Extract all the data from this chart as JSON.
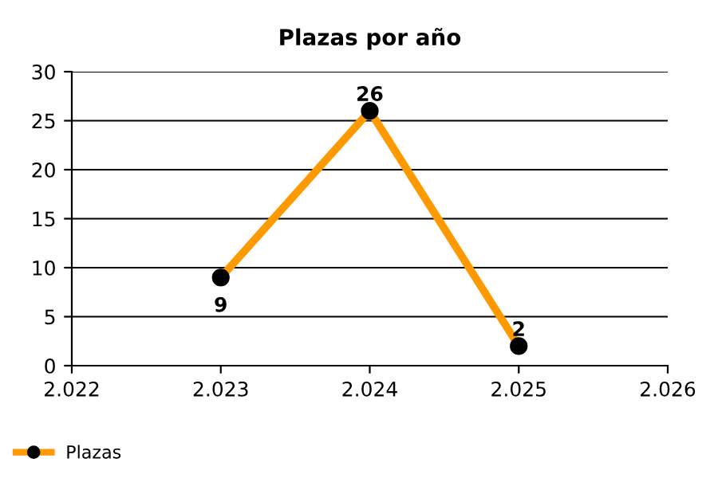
{
  "chart_data": {
    "type": "line",
    "title": "Plazas por año",
    "x": [
      2023,
      2024,
      2025
    ],
    "series": [
      {
        "name": "Plazas",
        "color": "#ff9900",
        "values": [
          9,
          26,
          2
        ]
      }
    ],
    "xlim": [
      2022,
      2026
    ],
    "xticks": [
      {
        "value": 2022,
        "label": "2.022"
      },
      {
        "value": 2023,
        "label": "2.023"
      },
      {
        "value": 2024,
        "label": "2.024"
      },
      {
        "value": 2025,
        "label": "2.025"
      },
      {
        "value": 2026,
        "label": "2.026"
      }
    ],
    "ylim": [
      0,
      30
    ],
    "yticks": [
      0,
      5,
      10,
      15,
      20,
      25,
      30
    ],
    "grid": "y",
    "legend": "bottom left",
    "marker": "circle",
    "line_style": "solid",
    "data_labels": true
  }
}
